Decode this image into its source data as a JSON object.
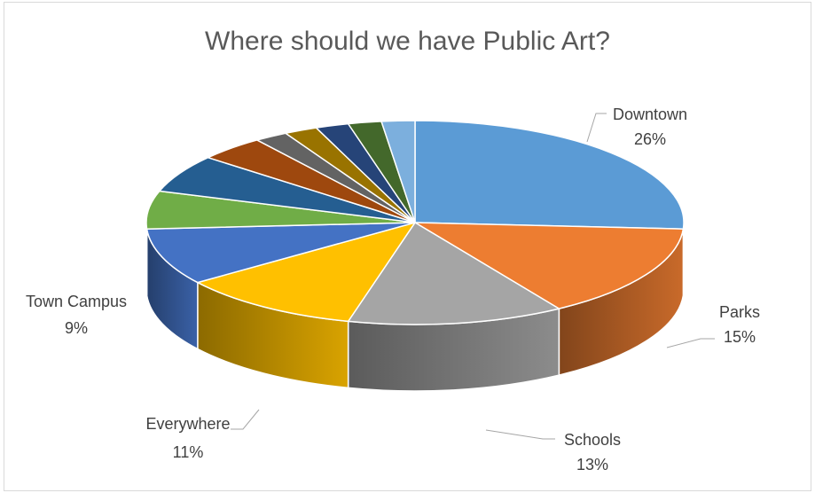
{
  "chart_data": {
    "type": "pie",
    "title": "Where should we have Public Art?",
    "slices": [
      {
        "label": "Downtown",
        "value": 26,
        "value_label": "26%",
        "color": "#5b9bd5"
      },
      {
        "label": "Parks",
        "value": 15,
        "value_label": "15%",
        "color": "#ed7d31"
      },
      {
        "label": "Schools",
        "value": 13,
        "value_label": "13%",
        "color": "#a5a5a5"
      },
      {
        "label": "Everywhere",
        "value": 11,
        "value_label": "11%",
        "color": "#ffc000"
      },
      {
        "label": "Town Campus",
        "value": 9,
        "value_label": "9%",
        "color": "#4472c4"
      },
      {
        "label": "",
        "value": 6,
        "value_label": "",
        "color": "#70ad47"
      },
      {
        "label": "",
        "value": 6,
        "value_label": "",
        "color": "#255e91"
      },
      {
        "label": "",
        "value": 4,
        "value_label": "",
        "color": "#9e480e"
      },
      {
        "label": "",
        "value": 2,
        "value_label": "",
        "color": "#636363"
      },
      {
        "label": "",
        "value": 2,
        "value_label": "",
        "color": "#997300"
      },
      {
        "label": "",
        "value": 2,
        "value_label": "",
        "color": "#264478"
      },
      {
        "label": "",
        "value": 2,
        "value_label": "",
        "color": "#43682b"
      },
      {
        "label": "",
        "value": 2,
        "value_label": "",
        "color": "#7cafdd"
      }
    ],
    "style": "3d",
    "legend": "none"
  }
}
